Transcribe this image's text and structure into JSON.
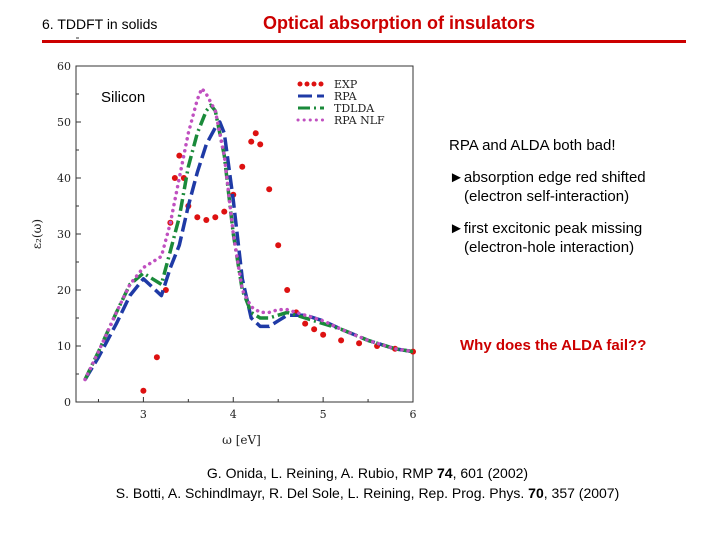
{
  "header": {
    "section": "6. TDDFT in solids",
    "title": "Optical absorption of insulators"
  },
  "annotation": {
    "material": "Silicon",
    "conclusion": "RPA and ALDA both bad!",
    "bullets": [
      {
        "marker": "►",
        "text": "absorption edge red shifted",
        "detail": "(electron self-interaction)"
      },
      {
        "marker": "►",
        "text": "first excitonic peak missing",
        "detail": "(electron-hole interaction)"
      }
    ],
    "question": "Why does the ALDA fail??"
  },
  "references": {
    "ref1": {
      "authors": "G. Onida, L. Reining, A. Rubio, RMP ",
      "volume": "74",
      "rest": ", 601 (2002)"
    },
    "ref2": {
      "authors": "S. Botti, A. Schindlmayr, R. Del Sole, L. Reining, Rep. Prog. Phys. ",
      "volume": "70",
      "rest": ", 357 (2007)"
    }
  },
  "colors": {
    "accent": "#cc0000",
    "exp": "#dd1111",
    "rpa": "#1f3aa6",
    "tdlda": "#1a8a3a",
    "rpa_nlf": "#c050c0"
  },
  "chart_data": {
    "type": "line",
    "title": "",
    "xlabel": "ω [eV]",
    "ylabel": "ε₂(ω)",
    "xlim": [
      2.25,
      6.0
    ],
    "ylim": [
      0,
      60
    ],
    "xticks": [
      "3",
      "4",
      "5",
      "6"
    ],
    "yticks": [
      "0",
      "10",
      "20",
      "30",
      "40",
      "50",
      "60"
    ],
    "legend": "top-right",
    "series": [
      {
        "name": "EXP",
        "style": "dots",
        "color": "#dd1111",
        "x": [
          3.0,
          3.15,
          3.25,
          3.3,
          3.35,
          3.4,
          3.45,
          3.5,
          3.6,
          3.7,
          3.8,
          3.9,
          4.0,
          4.1,
          4.2,
          4.25,
          4.3,
          4.4,
          4.5,
          4.6,
          4.7,
          4.8,
          4.9,
          5.0,
          5.2,
          5.4,
          5.6,
          5.8,
          6.0
        ],
        "y": [
          2,
          8,
          20,
          32,
          40,
          44,
          40,
          35,
          33,
          32.5,
          33,
          34,
          37,
          42,
          46.5,
          48,
          46,
          38,
          28,
          20,
          16,
          14,
          13,
          12,
          11,
          10.5,
          10,
          9.5,
          9
        ]
      },
      {
        "name": "RPA",
        "style": "long-dash",
        "color": "#1f3aa6",
        "x": [
          2.35,
          2.5,
          2.7,
          2.85,
          3.0,
          3.2,
          3.3,
          3.4,
          3.5,
          3.6,
          3.7,
          3.8,
          3.85,
          3.9,
          4.0,
          4.1,
          4.2,
          4.3,
          4.4,
          4.5,
          4.6,
          4.8,
          5.0,
          5.2,
          5.5,
          5.8,
          6.0
        ],
        "y": [
          4,
          8,
          14,
          19,
          22,
          19,
          24,
          28,
          35,
          41,
          46,
          49,
          50,
          48,
          36,
          22,
          15,
          13.5,
          13.5,
          14.5,
          15.5,
          15.5,
          14.5,
          13,
          11,
          9.5,
          9
        ]
      },
      {
        "name": "TDLDA",
        "style": "dash-dot",
        "color": "#1a8a3a",
        "x": [
          2.35,
          2.5,
          2.7,
          2.85,
          3.0,
          3.2,
          3.3,
          3.4,
          3.5,
          3.6,
          3.7,
          3.75,
          3.8,
          3.9,
          4.0,
          4.1,
          4.2,
          4.3,
          4.4,
          4.5,
          4.6,
          4.8,
          5.0,
          5.2,
          5.5,
          5.8,
          6.0
        ],
        "y": [
          4,
          9,
          16,
          21,
          23,
          21,
          27,
          33,
          42,
          48,
          52,
          53,
          52,
          44,
          30,
          20,
          16,
          15,
          15,
          15.5,
          16,
          15,
          14,
          13,
          11,
          9.5,
          9
        ]
      },
      {
        "name": "RPA NLF",
        "style": "dots-small",
        "color": "#c050c0",
        "x": [
          2.35,
          2.5,
          2.7,
          2.85,
          3.0,
          3.2,
          3.3,
          3.4,
          3.5,
          3.6,
          3.65,
          3.7,
          3.8,
          3.9,
          4.0,
          4.1,
          4.2,
          4.3,
          4.4,
          4.5,
          4.6,
          4.8,
          5.0,
          5.2,
          5.5,
          5.8,
          6.0
        ],
        "y": [
          4,
          9,
          16,
          21,
          24,
          26,
          32,
          40,
          48,
          54,
          56,
          55,
          52,
          44,
          30,
          20,
          17,
          16,
          16,
          16.5,
          16.5,
          15.5,
          14.5,
          13,
          11,
          9.5,
          9
        ]
      }
    ]
  }
}
